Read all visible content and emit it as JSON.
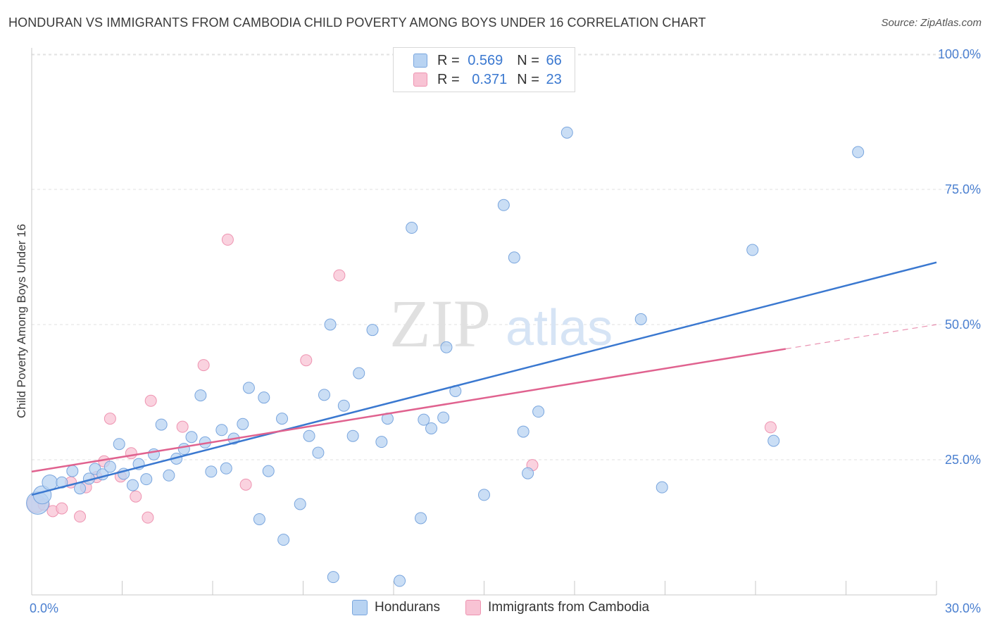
{
  "title": "HONDURAN VS IMMIGRANTS FROM CAMBODIA CHILD POVERTY AMONG BOYS UNDER 16 CORRELATION CHART",
  "source": "Source: ZipAtlas.com",
  "watermark": {
    "zip": "ZIP",
    "atlas": "atlas"
  },
  "legend": {
    "r_label": "R =",
    "n_label": "N =",
    "series": [
      {
        "r": "0.569",
        "n": "66"
      },
      {
        "r": "0.371",
        "n": "23"
      }
    ]
  },
  "colors": {
    "blue_fill": "#b8d3f2",
    "blue_stroke": "#7aa6de",
    "blue_line": "#3a78d0",
    "pink_fill": "#f8c3d4",
    "pink_stroke": "#ee94b1",
    "pink_line": "#e0628f",
    "tick_text": "#4a7fd0"
  },
  "chart_data": {
    "type": "scatter",
    "title": "HONDURAN VS IMMIGRANTS FROM CAMBODIA CHILD POVERTY AMONG BOYS UNDER 16 CORRELATION CHART",
    "xlabel": "",
    "ylabel": "Child Poverty Among Boys Under 16",
    "xlim": [
      0,
      30
    ],
    "ylim": [
      0,
      105
    ],
    "x_ticks": [
      {
        "v": 0,
        "label": "0.0%"
      },
      {
        "v": 30,
        "label": "30.0%"
      }
    ],
    "y_ticks": [
      {
        "v": 25,
        "label": "25.0%"
      },
      {
        "v": 50,
        "label": "50.0%"
      },
      {
        "v": 75,
        "label": "75.0%"
      },
      {
        "v": 100,
        "label": "100.0%"
      }
    ],
    "series": [
      {
        "name": "Hondurans",
        "r": 0.569,
        "n": 66,
        "trend": {
          "x0": 0,
          "y0": 18.5,
          "x1": 30,
          "y1": 61.5
        },
        "points": [
          {
            "x": 0.2,
            "y": 17.0,
            "s": 3
          },
          {
            "x": 0.35,
            "y": 18.5,
            "s": 2
          },
          {
            "x": 0.6,
            "y": 20.8,
            "s": 1.5
          },
          {
            "x": 1.0,
            "y": 20.8,
            "s": 1
          },
          {
            "x": 1.35,
            "y": 22.9,
            "s": 1
          },
          {
            "x": 1.6,
            "y": 19.7,
            "s": 1
          },
          {
            "x": 1.9,
            "y": 21.5,
            "s": 1
          },
          {
            "x": 2.1,
            "y": 23.3,
            "s": 1
          },
          {
            "x": 2.35,
            "y": 22.3,
            "s": 1
          },
          {
            "x": 2.6,
            "y": 23.7,
            "s": 1
          },
          {
            "x": 2.9,
            "y": 27.9,
            "s": 1
          },
          {
            "x": 3.05,
            "y": 22.4,
            "s": 1
          },
          {
            "x": 3.35,
            "y": 20.3,
            "s": 1
          },
          {
            "x": 3.55,
            "y": 24.2,
            "s": 1
          },
          {
            "x": 3.8,
            "y": 21.4,
            "s": 1
          },
          {
            "x": 4.05,
            "y": 26.0,
            "s": 1
          },
          {
            "x": 4.3,
            "y": 31.5,
            "s": 1
          },
          {
            "x": 4.55,
            "y": 22.1,
            "s": 1
          },
          {
            "x": 4.8,
            "y": 25.2,
            "s": 1
          },
          {
            "x": 5.05,
            "y": 27.0,
            "s": 1
          },
          {
            "x": 5.3,
            "y": 29.2,
            "s": 1
          },
          {
            "x": 5.6,
            "y": 36.9,
            "s": 1
          },
          {
            "x": 5.75,
            "y": 28.2,
            "s": 1
          },
          {
            "x": 5.95,
            "y": 22.8,
            "s": 1
          },
          {
            "x": 6.3,
            "y": 30.5,
            "s": 1
          },
          {
            "x": 6.45,
            "y": 23.4,
            "s": 1
          },
          {
            "x": 6.7,
            "y": 28.9,
            "s": 1
          },
          {
            "x": 7.0,
            "y": 31.6,
            "s": 1
          },
          {
            "x": 7.2,
            "y": 38.3,
            "s": 1
          },
          {
            "x": 7.55,
            "y": 14.0,
            "s": 1
          },
          {
            "x": 7.7,
            "y": 36.5,
            "s": 1
          },
          {
            "x": 7.85,
            "y": 22.9,
            "s": 1
          },
          {
            "x": 8.3,
            "y": 32.6,
            "s": 1
          },
          {
            "x": 8.35,
            "y": 10.2,
            "s": 1
          },
          {
            "x": 8.9,
            "y": 16.8,
            "s": 1
          },
          {
            "x": 9.2,
            "y": 29.4,
            "s": 1
          },
          {
            "x": 9.5,
            "y": 26.3,
            "s": 1
          },
          {
            "x": 9.7,
            "y": 37.0,
            "s": 1
          },
          {
            "x": 9.9,
            "y": 50.0,
            "s": 1
          },
          {
            "x": 10.0,
            "y": 3.3,
            "s": 1
          },
          {
            "x": 10.35,
            "y": 35.0,
            "s": 1
          },
          {
            "x": 10.65,
            "y": 29.4,
            "s": 1
          },
          {
            "x": 10.85,
            "y": 41.0,
            "s": 1
          },
          {
            "x": 11.3,
            "y": 49.0,
            "s": 1
          },
          {
            "x": 11.6,
            "y": 28.3,
            "s": 1
          },
          {
            "x": 11.8,
            "y": 32.6,
            "s": 1
          },
          {
            "x": 12.2,
            "y": 2.6,
            "s": 1
          },
          {
            "x": 12.6,
            "y": 67.9,
            "s": 1
          },
          {
            "x": 12.9,
            "y": 14.2,
            "s": 1
          },
          {
            "x": 13.0,
            "y": 32.4,
            "s": 1
          },
          {
            "x": 13.25,
            "y": 30.8,
            "s": 1
          },
          {
            "x": 13.65,
            "y": 32.8,
            "s": 1
          },
          {
            "x": 13.75,
            "y": 45.8,
            "s": 1
          },
          {
            "x": 14.05,
            "y": 37.7,
            "s": 1
          },
          {
            "x": 15.0,
            "y": 18.5,
            "s": 1
          },
          {
            "x": 15.65,
            "y": 72.1,
            "s": 1
          },
          {
            "x": 16.0,
            "y": 62.4,
            "s": 1
          },
          {
            "x": 16.3,
            "y": 30.2,
            "s": 1
          },
          {
            "x": 16.45,
            "y": 22.5,
            "s": 1
          },
          {
            "x": 16.8,
            "y": 33.9,
            "s": 1
          },
          {
            "x": 17.75,
            "y": 85.5,
            "s": 1
          },
          {
            "x": 20.2,
            "y": 51.0,
            "s": 1
          },
          {
            "x": 20.9,
            "y": 19.9,
            "s": 1
          },
          {
            "x": 23.9,
            "y": 63.8,
            "s": 1
          },
          {
            "x": 24.6,
            "y": 28.5,
            "s": 1
          },
          {
            "x": 27.4,
            "y": 81.9,
            "s": 1
          }
        ]
      },
      {
        "name": "Immigrants from Cambodia",
        "r": 0.371,
        "n": 23,
        "trend": {
          "x0": 0,
          "y0": 22.8,
          "x1": 25,
          "y1": 45.5
        },
        "trend_ext": {
          "x0": 25,
          "y0": 45.5,
          "x1": 30,
          "y1": 50.0
        },
        "points": [
          {
            "x": 0.15,
            "y": 16.9,
            "s": 2
          },
          {
            "x": 0.4,
            "y": 16.7,
            "s": 1
          },
          {
            "x": 0.7,
            "y": 15.5,
            "s": 1
          },
          {
            "x": 1.0,
            "y": 16.0,
            "s": 1
          },
          {
            "x": 1.3,
            "y": 20.8,
            "s": 1
          },
          {
            "x": 1.6,
            "y": 14.5,
            "s": 1
          },
          {
            "x": 1.8,
            "y": 19.9,
            "s": 1
          },
          {
            "x": 2.15,
            "y": 21.8,
            "s": 1
          },
          {
            "x": 2.4,
            "y": 24.7,
            "s": 1
          },
          {
            "x": 2.6,
            "y": 32.6,
            "s": 1
          },
          {
            "x": 2.95,
            "y": 21.9,
            "s": 1
          },
          {
            "x": 3.3,
            "y": 26.2,
            "s": 1
          },
          {
            "x": 3.45,
            "y": 18.2,
            "s": 1
          },
          {
            "x": 3.85,
            "y": 14.3,
            "s": 1
          },
          {
            "x": 3.95,
            "y": 35.9,
            "s": 1
          },
          {
            "x": 5.0,
            "y": 31.1,
            "s": 1
          },
          {
            "x": 5.7,
            "y": 42.5,
            "s": 1
          },
          {
            "x": 6.5,
            "y": 65.7,
            "s": 1
          },
          {
            "x": 7.1,
            "y": 20.4,
            "s": 1
          },
          {
            "x": 9.1,
            "y": 43.4,
            "s": 1
          },
          {
            "x": 10.2,
            "y": 59.1,
            "s": 1
          },
          {
            "x": 16.6,
            "y": 24.0,
            "s": 1
          },
          {
            "x": 24.5,
            "y": 31.0,
            "s": 1
          }
        ]
      }
    ]
  },
  "bottom_legend": [
    "Hondurans",
    "Immigrants from Cambodia"
  ]
}
